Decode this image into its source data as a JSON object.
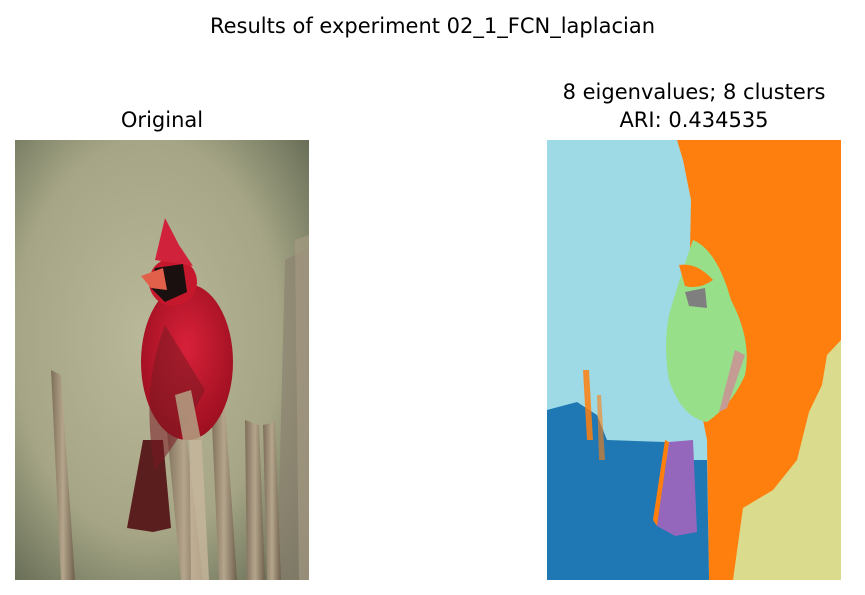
{
  "figure": {
    "suptitle": "Results of experiment 02_1_FCN_laplacian"
  },
  "panels": [
    {
      "title": "Original",
      "image": "photo of a northern cardinal perched on weathered wooden fence posts"
    },
    {
      "title_line1": "8 eigenvalues; 8 clusters",
      "title_line2": "ARI: 0.434535",
      "image": "cluster segmentation map"
    }
  ],
  "colors": {
    "cluster_light_blue": "#9edae5",
    "cluster_orange": "#ff7f0e",
    "cluster_blue": "#1f77b4",
    "cluster_green": "#98df8a",
    "cluster_purple": "#9467bd",
    "cluster_gray": "#7f7f7f",
    "cluster_khaki": "#dbdb8d",
    "cluster_brown_pink": "#c49c94",
    "bird_red": "#c0162a",
    "background_olive": "#a9a98a"
  }
}
